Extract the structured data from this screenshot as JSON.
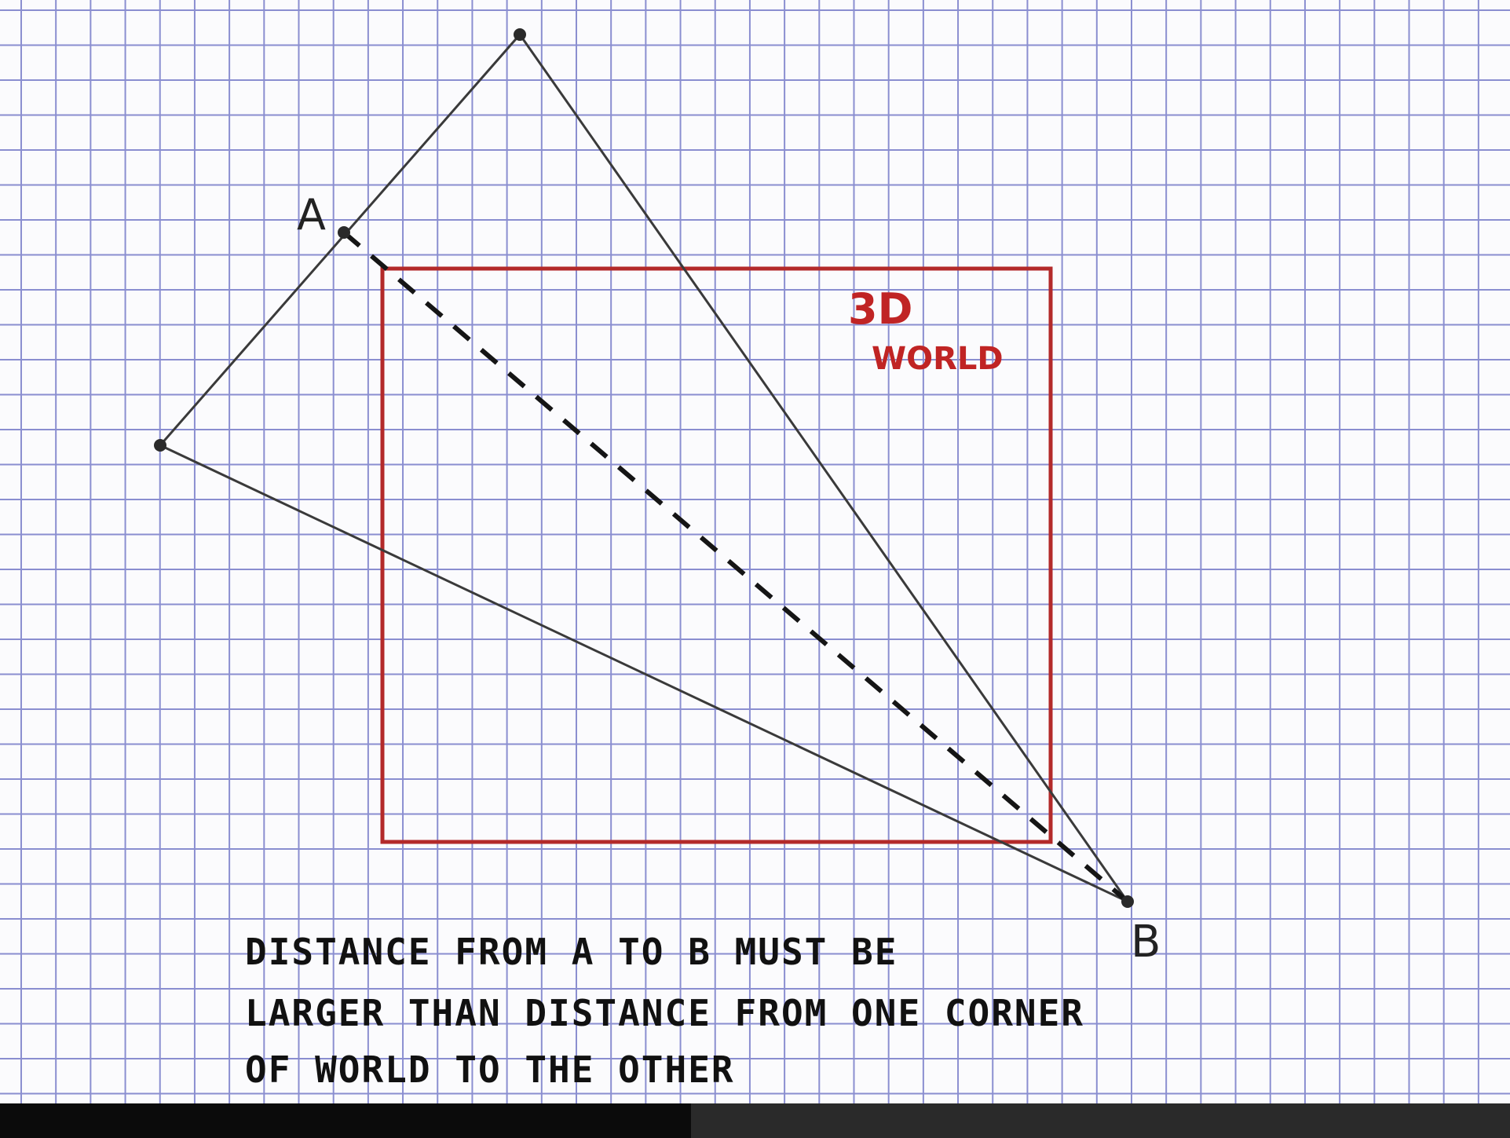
{
  "labels": {
    "point_a": "A",
    "point_b": "B",
    "world_line1": "3D",
    "world_line2": "WORLD"
  },
  "note": {
    "line1": "DISTANCE FROM A TO B MUST BE",
    "line2": "LARGER THAN DISTANCE FROM ONE CORNER",
    "line3": "OF WORLD TO THE OTHER"
  },
  "colors": {
    "grid": "#8a8ed0",
    "paper": "#fbfbfd",
    "pen": "#3a3a3a",
    "world_box": "#b32a2a",
    "scan_strip_dark": "#0b0b0b",
    "scan_strip_mid": "#2a2a2a"
  }
}
